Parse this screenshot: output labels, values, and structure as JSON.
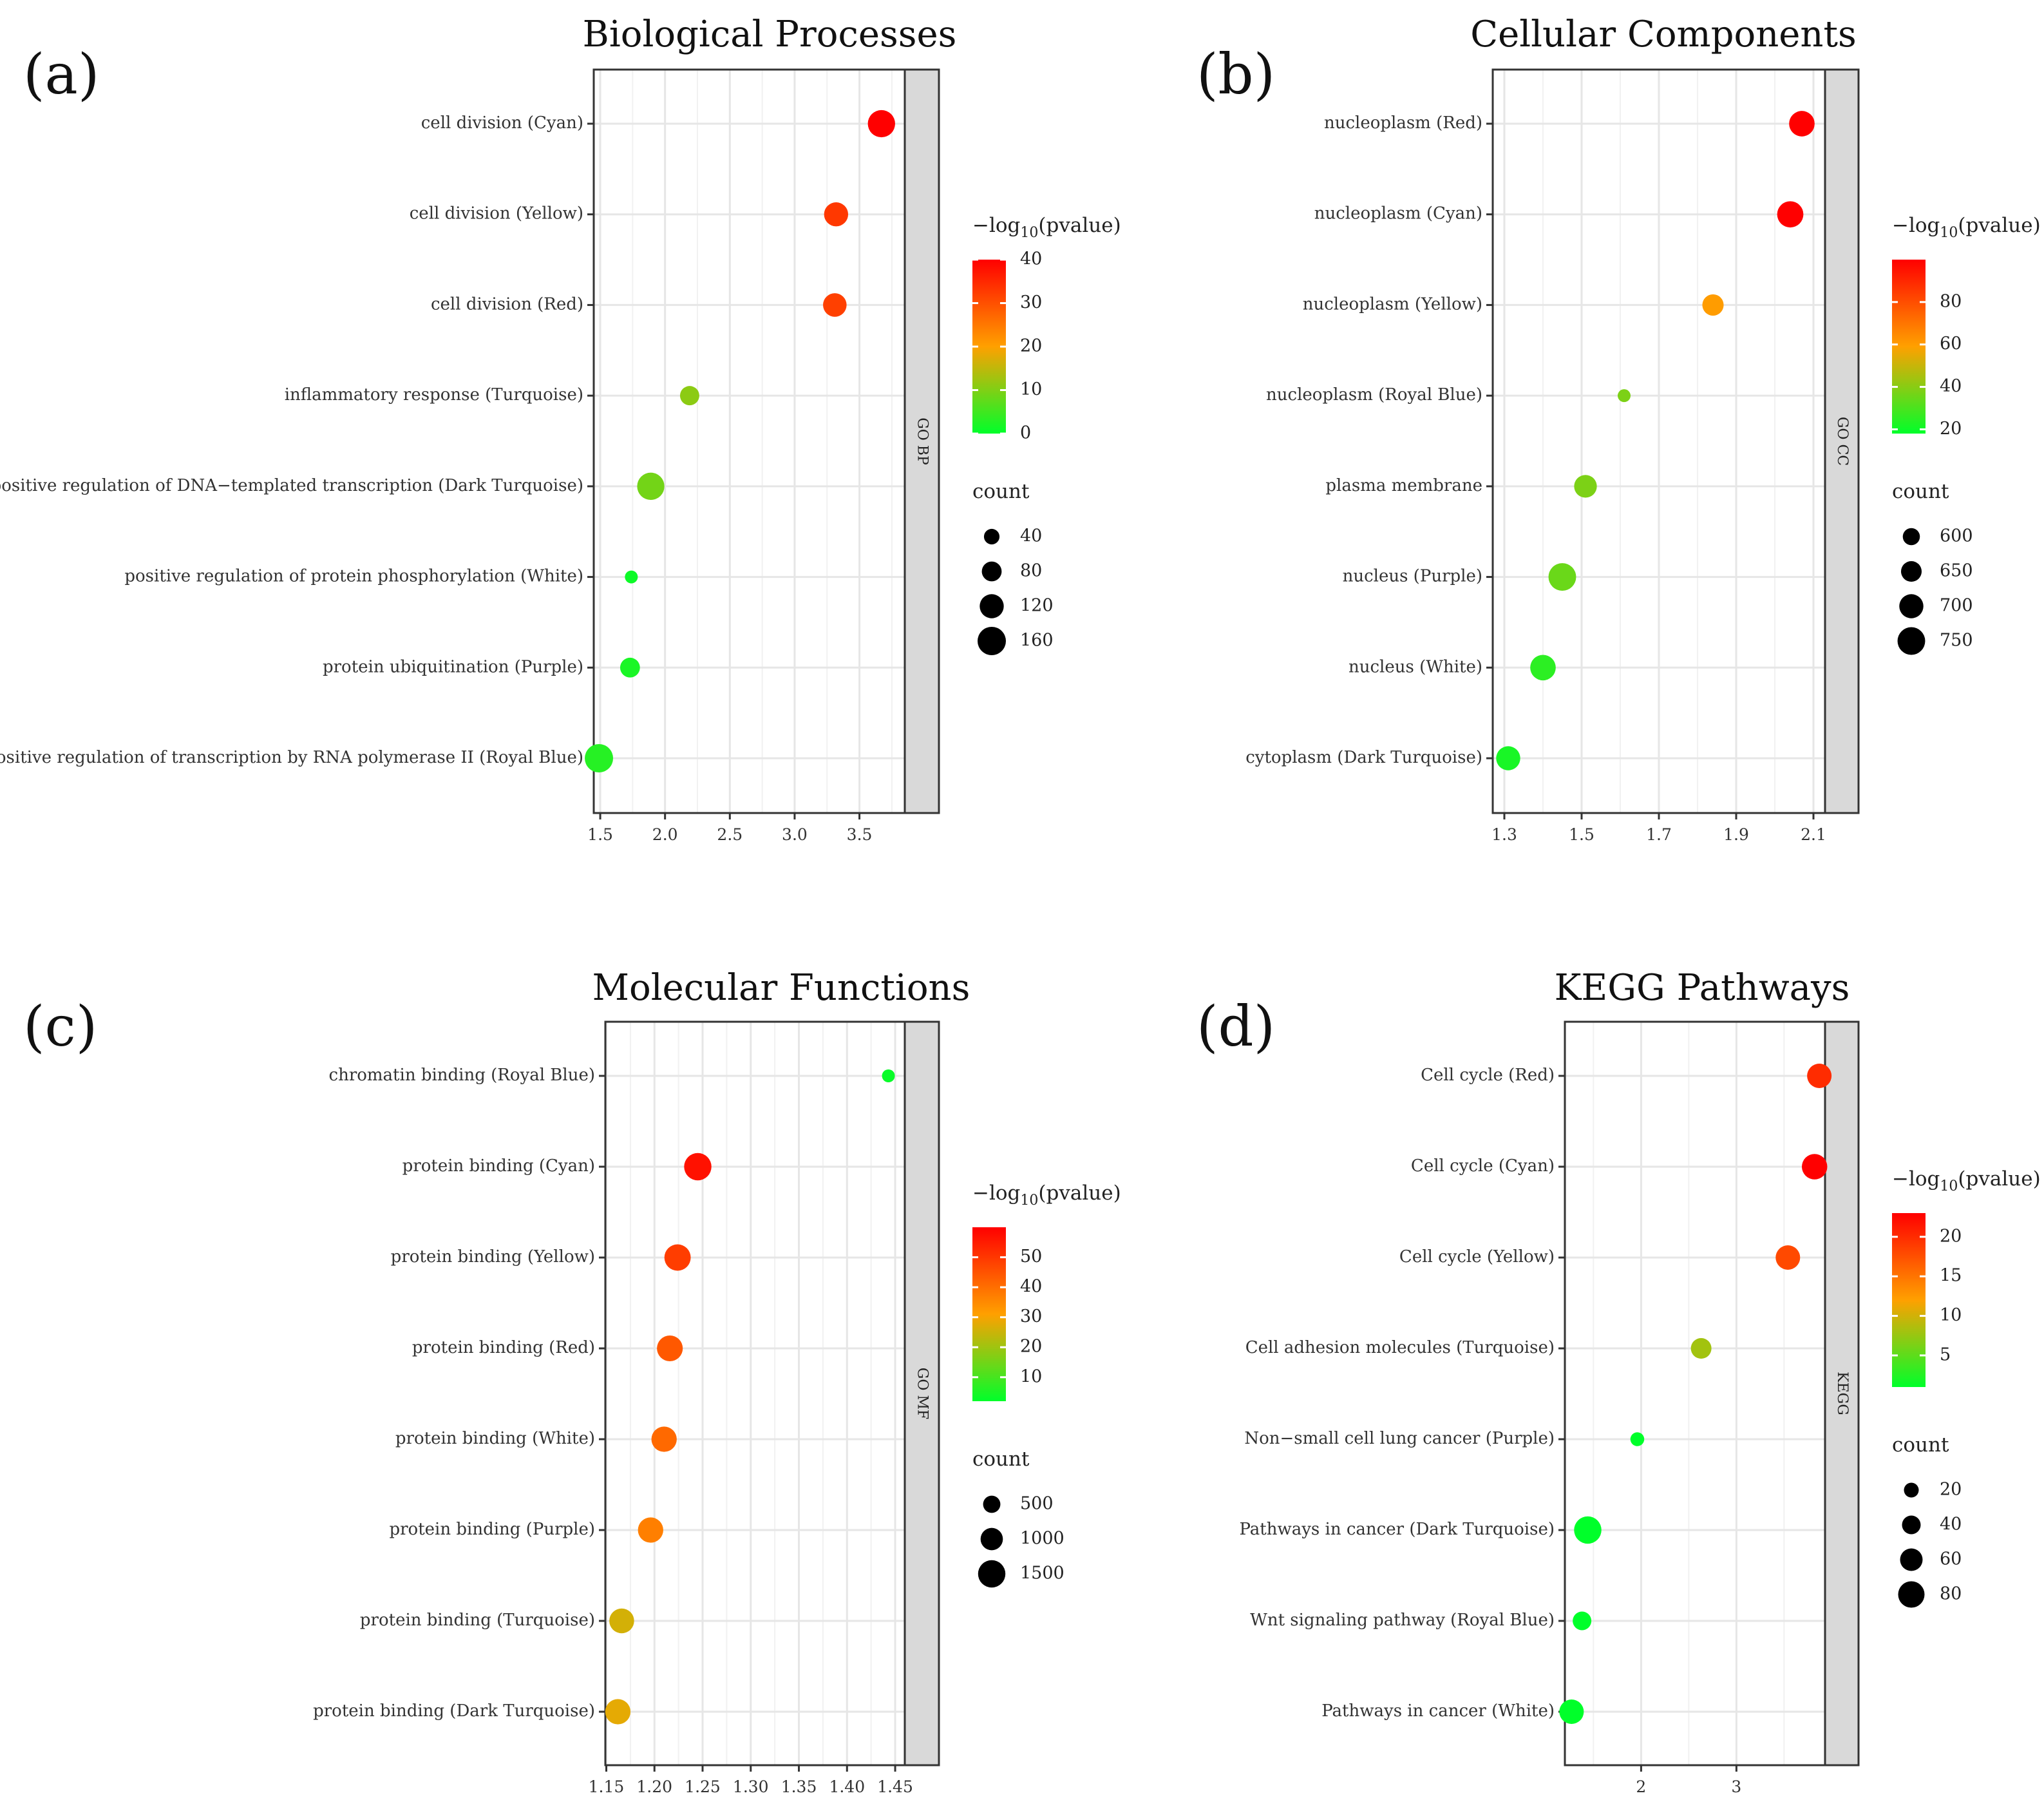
{
  "figure": {
    "legend_labels": {
      "pvalue_prefix": "−log",
      "pvalue_sub": "10",
      "pvalue_suffix": "(pvalue)",
      "count": "count"
    },
    "colors": {
      "low": "#00ff2a",
      "mid": "#ffa000",
      "high": "#ff0000",
      "strip": "#d9d9d9"
    }
  },
  "chart_data": [
    {
      "type": "scatter",
      "panel": "(a)",
      "title": "Biological Processes",
      "strip_label": "GO BP",
      "xlabel": "",
      "ylabel": "",
      "xlim": [
        1.45,
        3.85
      ],
      "xticks": [
        1.5,
        2.0,
        2.5,
        3.0,
        3.5
      ],
      "xtick_labels": [
        "1.5",
        "2.0",
        "2.5",
        "3.0",
        "3.5"
      ],
      "terms": [
        "cell division (Cyan)",
        "cell division (Yellow)",
        "cell division (Red)",
        "inflammatory response (Turquoise)",
        "positive regulation of DNA−templated transcription (Dark Turquoise)",
        "positive regulation of protein phosphorylation (White)",
        "protein ubiquitination (Purple)",
        "positive regulation of transcription by RNA polymerase II (Royal Blue)"
      ],
      "x": [
        3.67,
        3.32,
        3.31,
        2.19,
        1.89,
        1.74,
        1.73,
        1.49
      ],
      "color_values": [
        40,
        33,
        32,
        11,
        9,
        1,
        2,
        3
      ],
      "count": [
        150,
        120,
        115,
        75,
        150,
        15,
        80,
        160
      ],
      "color_legend": {
        "range": [
          0,
          40
        ],
        "ticks": [
          40,
          30,
          20,
          10,
          0
        ]
      },
      "size_legend": {
        "range": [
          15,
          160
        ],
        "ticks": [
          40,
          80,
          120,
          160
        ]
      }
    },
    {
      "type": "scatter",
      "panel": "(b)",
      "title": "Cellular Components",
      "strip_label": "GO CC",
      "xlabel": "",
      "ylabel": "",
      "xlim": [
        1.27,
        2.13
      ],
      "xticks": [
        1.3,
        1.5,
        1.7,
        1.9,
        2.1
      ],
      "xtick_labels": [
        "1.3",
        "1.5",
        "1.7",
        "1.9",
        "2.1"
      ],
      "terms": [
        "nucleoplasm (Red)",
        "nucleoplasm (Cyan)",
        "nucleoplasm (Yellow)",
        "nucleoplasm (Royal Blue)",
        "plasma membrane",
        "nucleus (Purple)",
        "nucleus (White)",
        "cytoplasm (Dark Turquoise)"
      ],
      "x": [
        2.07,
        2.04,
        1.84,
        1.61,
        1.51,
        1.45,
        1.4,
        1.31
      ],
      "color_values": [
        100,
        100,
        60,
        38,
        38,
        35,
        25,
        22
      ],
      "count": [
        720,
        730,
        660,
        540,
        680,
        750,
        720,
        700
      ],
      "color_legend": {
        "range": [
          18,
          100
        ],
        "ticks": [
          80,
          60,
          40,
          20
        ]
      },
      "size_legend": {
        "range": [
          540,
          760
        ],
        "ticks": [
          600,
          650,
          700,
          750
        ]
      }
    },
    {
      "type": "scatter",
      "panel": "(c)",
      "title": "Molecular Functions",
      "strip_label": "GO MF",
      "xlabel": "",
      "ylabel": "",
      "xlim": [
        1.149,
        1.46
      ],
      "xticks": [
        1.15,
        1.2,
        1.25,
        1.3,
        1.35,
        1.4,
        1.45
      ],
      "xtick_labels": [
        "1.15",
        "1.20",
        "1.25",
        "1.30",
        "1.35",
        "1.40",
        "1.45"
      ],
      "terms": [
        "chromatin binding (Royal Blue)",
        "protein binding (Cyan)",
        "protein binding (Yellow)",
        "protein binding (Red)",
        "protein binding (White)",
        "protein binding (Purple)",
        "protein binding (Turquoise)",
        "protein binding (Dark Turquoise)"
      ],
      "x": [
        1.443,
        1.245,
        1.224,
        1.216,
        1.21,
        1.196,
        1.166,
        1.162
      ],
      "color_values": [
        3,
        57,
        49,
        44,
        41,
        37,
        26,
        28
      ],
      "count": [
        60,
        1500,
        1400,
        1350,
        1300,
        1300,
        1250,
        1300
      ],
      "color_legend": {
        "range": [
          2,
          60
        ],
        "ticks": [
          50,
          40,
          30,
          20,
          10
        ]
      },
      "size_legend": {
        "range": [
          60,
          1600
        ],
        "ticks": [
          500,
          1000,
          1500
        ]
      }
    },
    {
      "type": "scatter",
      "panel": "(d)",
      "title": "KEGG Pathways",
      "strip_label": "KEGG",
      "xlabel": "",
      "ylabel": "",
      "xlim": [
        1.2,
        3.93
      ],
      "xticks": [
        2,
        3
      ],
      "minor_xticks": [
        1.5,
        2.5,
        3.5
      ],
      "xtick_labels": [
        "2",
        "3"
      ],
      "terms": [
        "Cell cycle (Red)",
        "Cell cycle (Cyan)",
        "Cell cycle (Yellow)",
        "Cell adhesion molecules (Turquoise)",
        "Non−small cell lung cancer (Purple)",
        "Pathways in cancer (Dark Turquoise)",
        "Wnt signaling pathway (Royal Blue)",
        "Pathways in cancer (White)"
      ],
      "x": [
        3.87,
        3.82,
        3.54,
        2.63,
        1.96,
        1.44,
        1.38,
        1.27
      ],
      "color_values": [
        20,
        23,
        18,
        8,
        1,
        1,
        1,
        1
      ],
      "count": [
        70,
        75,
        70,
        50,
        15,
        85,
        40,
        70
      ],
      "color_legend": {
        "range": [
          1,
          23
        ],
        "ticks": [
          20,
          15,
          10,
          5
        ]
      },
      "size_legend": {
        "range": [
          10,
          90
        ],
        "ticks": [
          20,
          40,
          60,
          80
        ]
      }
    }
  ]
}
